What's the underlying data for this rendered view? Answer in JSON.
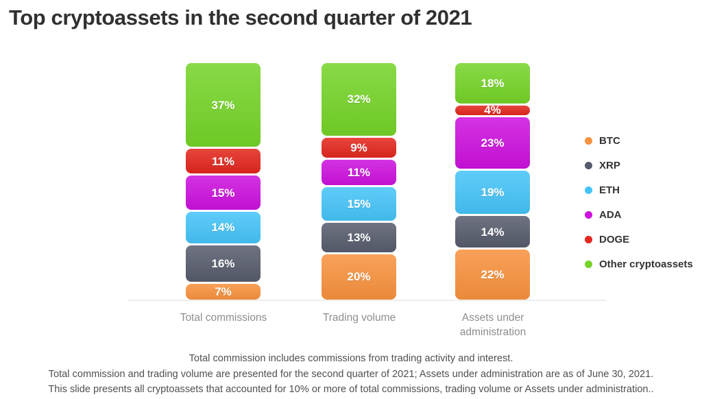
{
  "title": "Top cryptoassets in the second quarter of 2021",
  "chart_data": {
    "type": "bar",
    "stacked": true,
    "orientation": "vertical",
    "categories": [
      "Total commissions",
      "Trading volume",
      "Assets under administration"
    ],
    "series": [
      {
        "name": "BTC",
        "color": "#F8923E",
        "values": [
          7,
          20,
          22
        ]
      },
      {
        "name": "XRP",
        "color": "#575C6D",
        "values": [
          16,
          13,
          14
        ]
      },
      {
        "name": "ETH",
        "color": "#45C4F8",
        "values": [
          14,
          15,
          19
        ]
      },
      {
        "name": "ADA",
        "color": "#CD11DE",
        "values": [
          15,
          11,
          23
        ]
      },
      {
        "name": "DOGE",
        "color": "#E3271E",
        "values": [
          11,
          9,
          4
        ]
      },
      {
        "name": "Other cryptoassets",
        "color": "#75D428",
        "values": [
          37,
          32,
          18
        ]
      }
    ],
    "value_suffix": "%",
    "ylim": [
      0,
      100
    ],
    "grid": false,
    "legend_position": "right",
    "title": "Top cryptoassets in the second quarter of 2021"
  },
  "footnotes": [
    "Total commission includes commissions from trading activity and interest.",
    "Total commission and trading volume are presented for the second quarter of 2021; Assets under administration are as of June 30, 2021.",
    "This slide presents all cryptoassets that accounted for 10% or more of total commissions, trading volume or Assets under administration.."
  ]
}
